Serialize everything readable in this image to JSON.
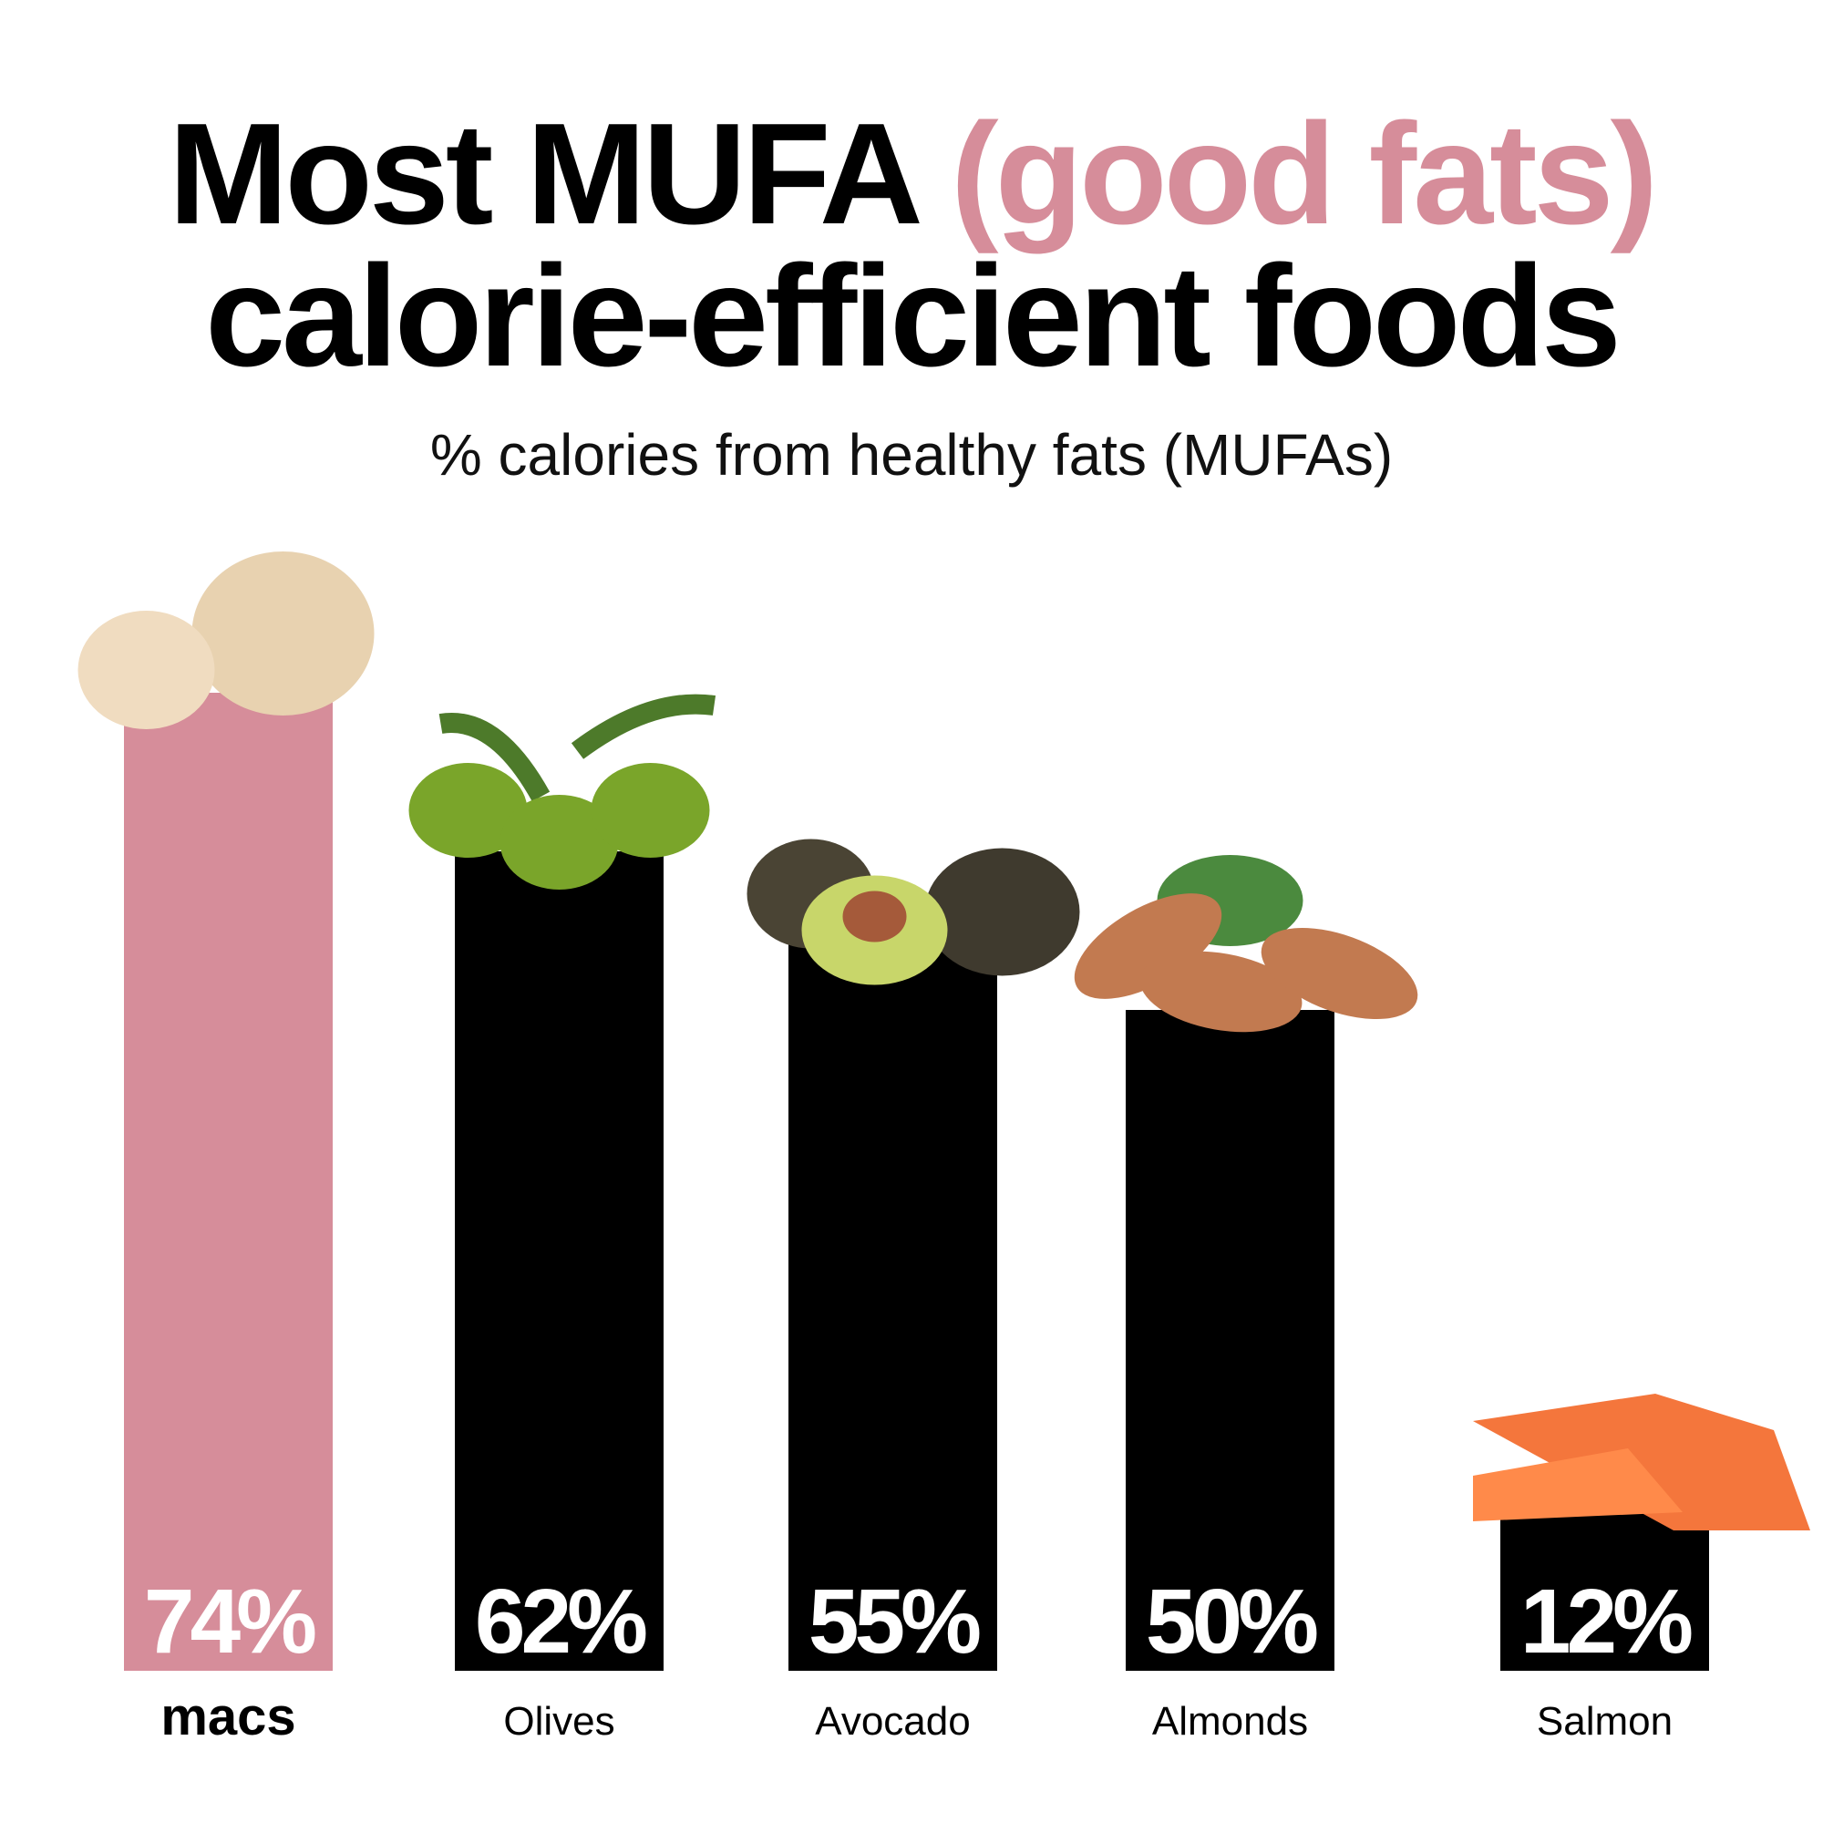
{
  "title": {
    "line1_a": "Most MUFA ",
    "line1_b": "(good fats)",
    "line2": "calorie-efficient foods"
  },
  "subtitle": "% calories from healthy fats (MUFAs)",
  "colors": {
    "accent": "#d68d9a",
    "bar": "#000000",
    "label_on_bar": "#ffffff"
  },
  "chart_data": {
    "type": "bar",
    "title": "Most MUFA (good fats) calorie-efficient foods",
    "subtitle": "% calories from healthy fats (MUFAs)",
    "categories": [
      "macs",
      "Olives",
      "Avocado",
      "Almonds",
      "Salmon"
    ],
    "values": [
      74,
      62,
      55,
      50,
      12
    ],
    "data_labels": [
      "74%",
      "62%",
      "55%",
      "50%",
      "12%"
    ],
    "highlighted": "macs",
    "icons": [
      "macadamia-nuts",
      "olives",
      "avocado",
      "almonds",
      "salmon"
    ],
    "unit": "%",
    "grid": false,
    "legend": "none"
  }
}
